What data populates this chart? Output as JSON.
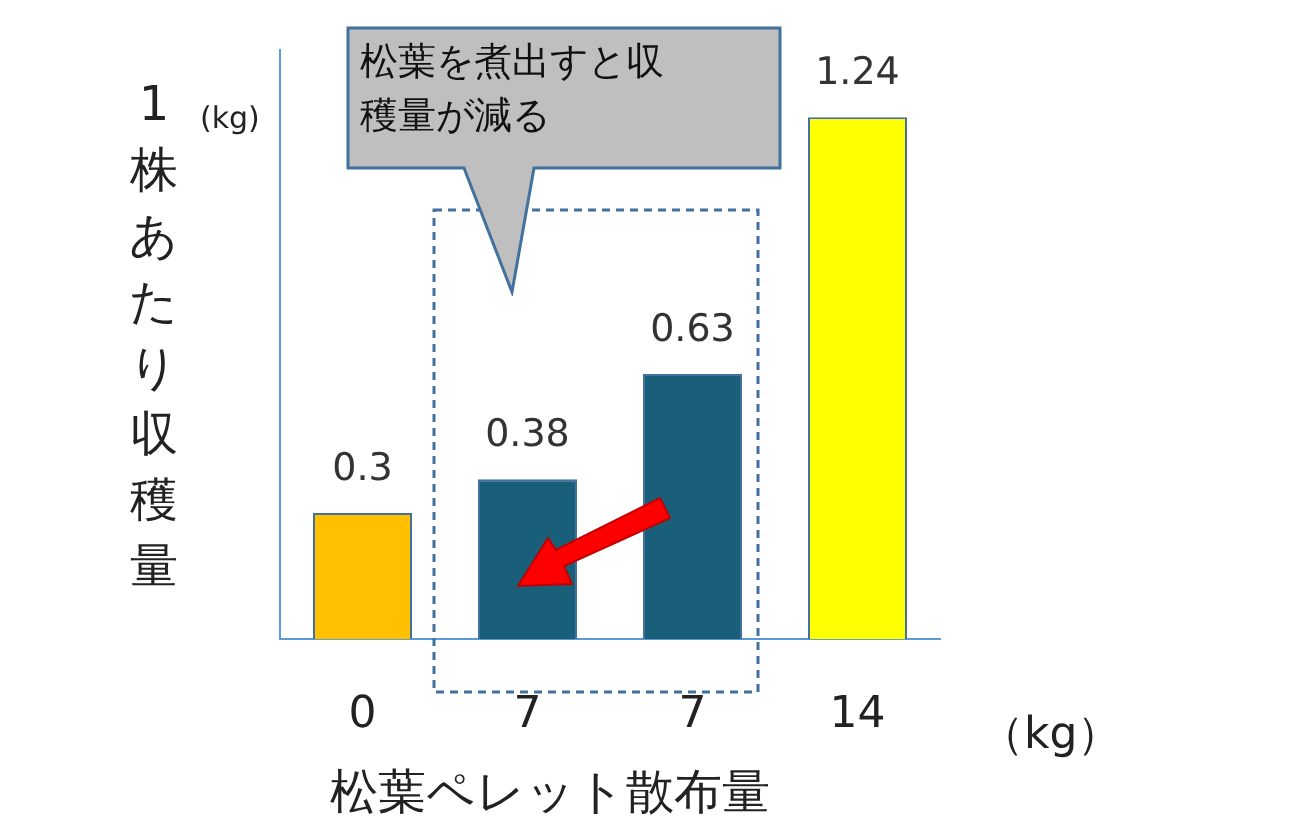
{
  "chart_data": {
    "type": "bar",
    "categories": [
      "0",
      "7",
      "7",
      "14"
    ],
    "values": [
      0.3,
      0.38,
      0.63,
      1.24
    ],
    "colors": [
      "#ffc000",
      "#1a5f7a",
      "#1a5f7a",
      "#ffff00"
    ],
    "xlabel": "松葉ペレット散布量",
    "ylabel": "1株あたり収穫量",
    "annotations": [
      "(kg)",
      "（kg）",
      "松葉を煮出すと収穫量が減る"
    ],
    "data_labels": true,
    "tick_labels": "x",
    "grid": false,
    "legend": false
  }
}
